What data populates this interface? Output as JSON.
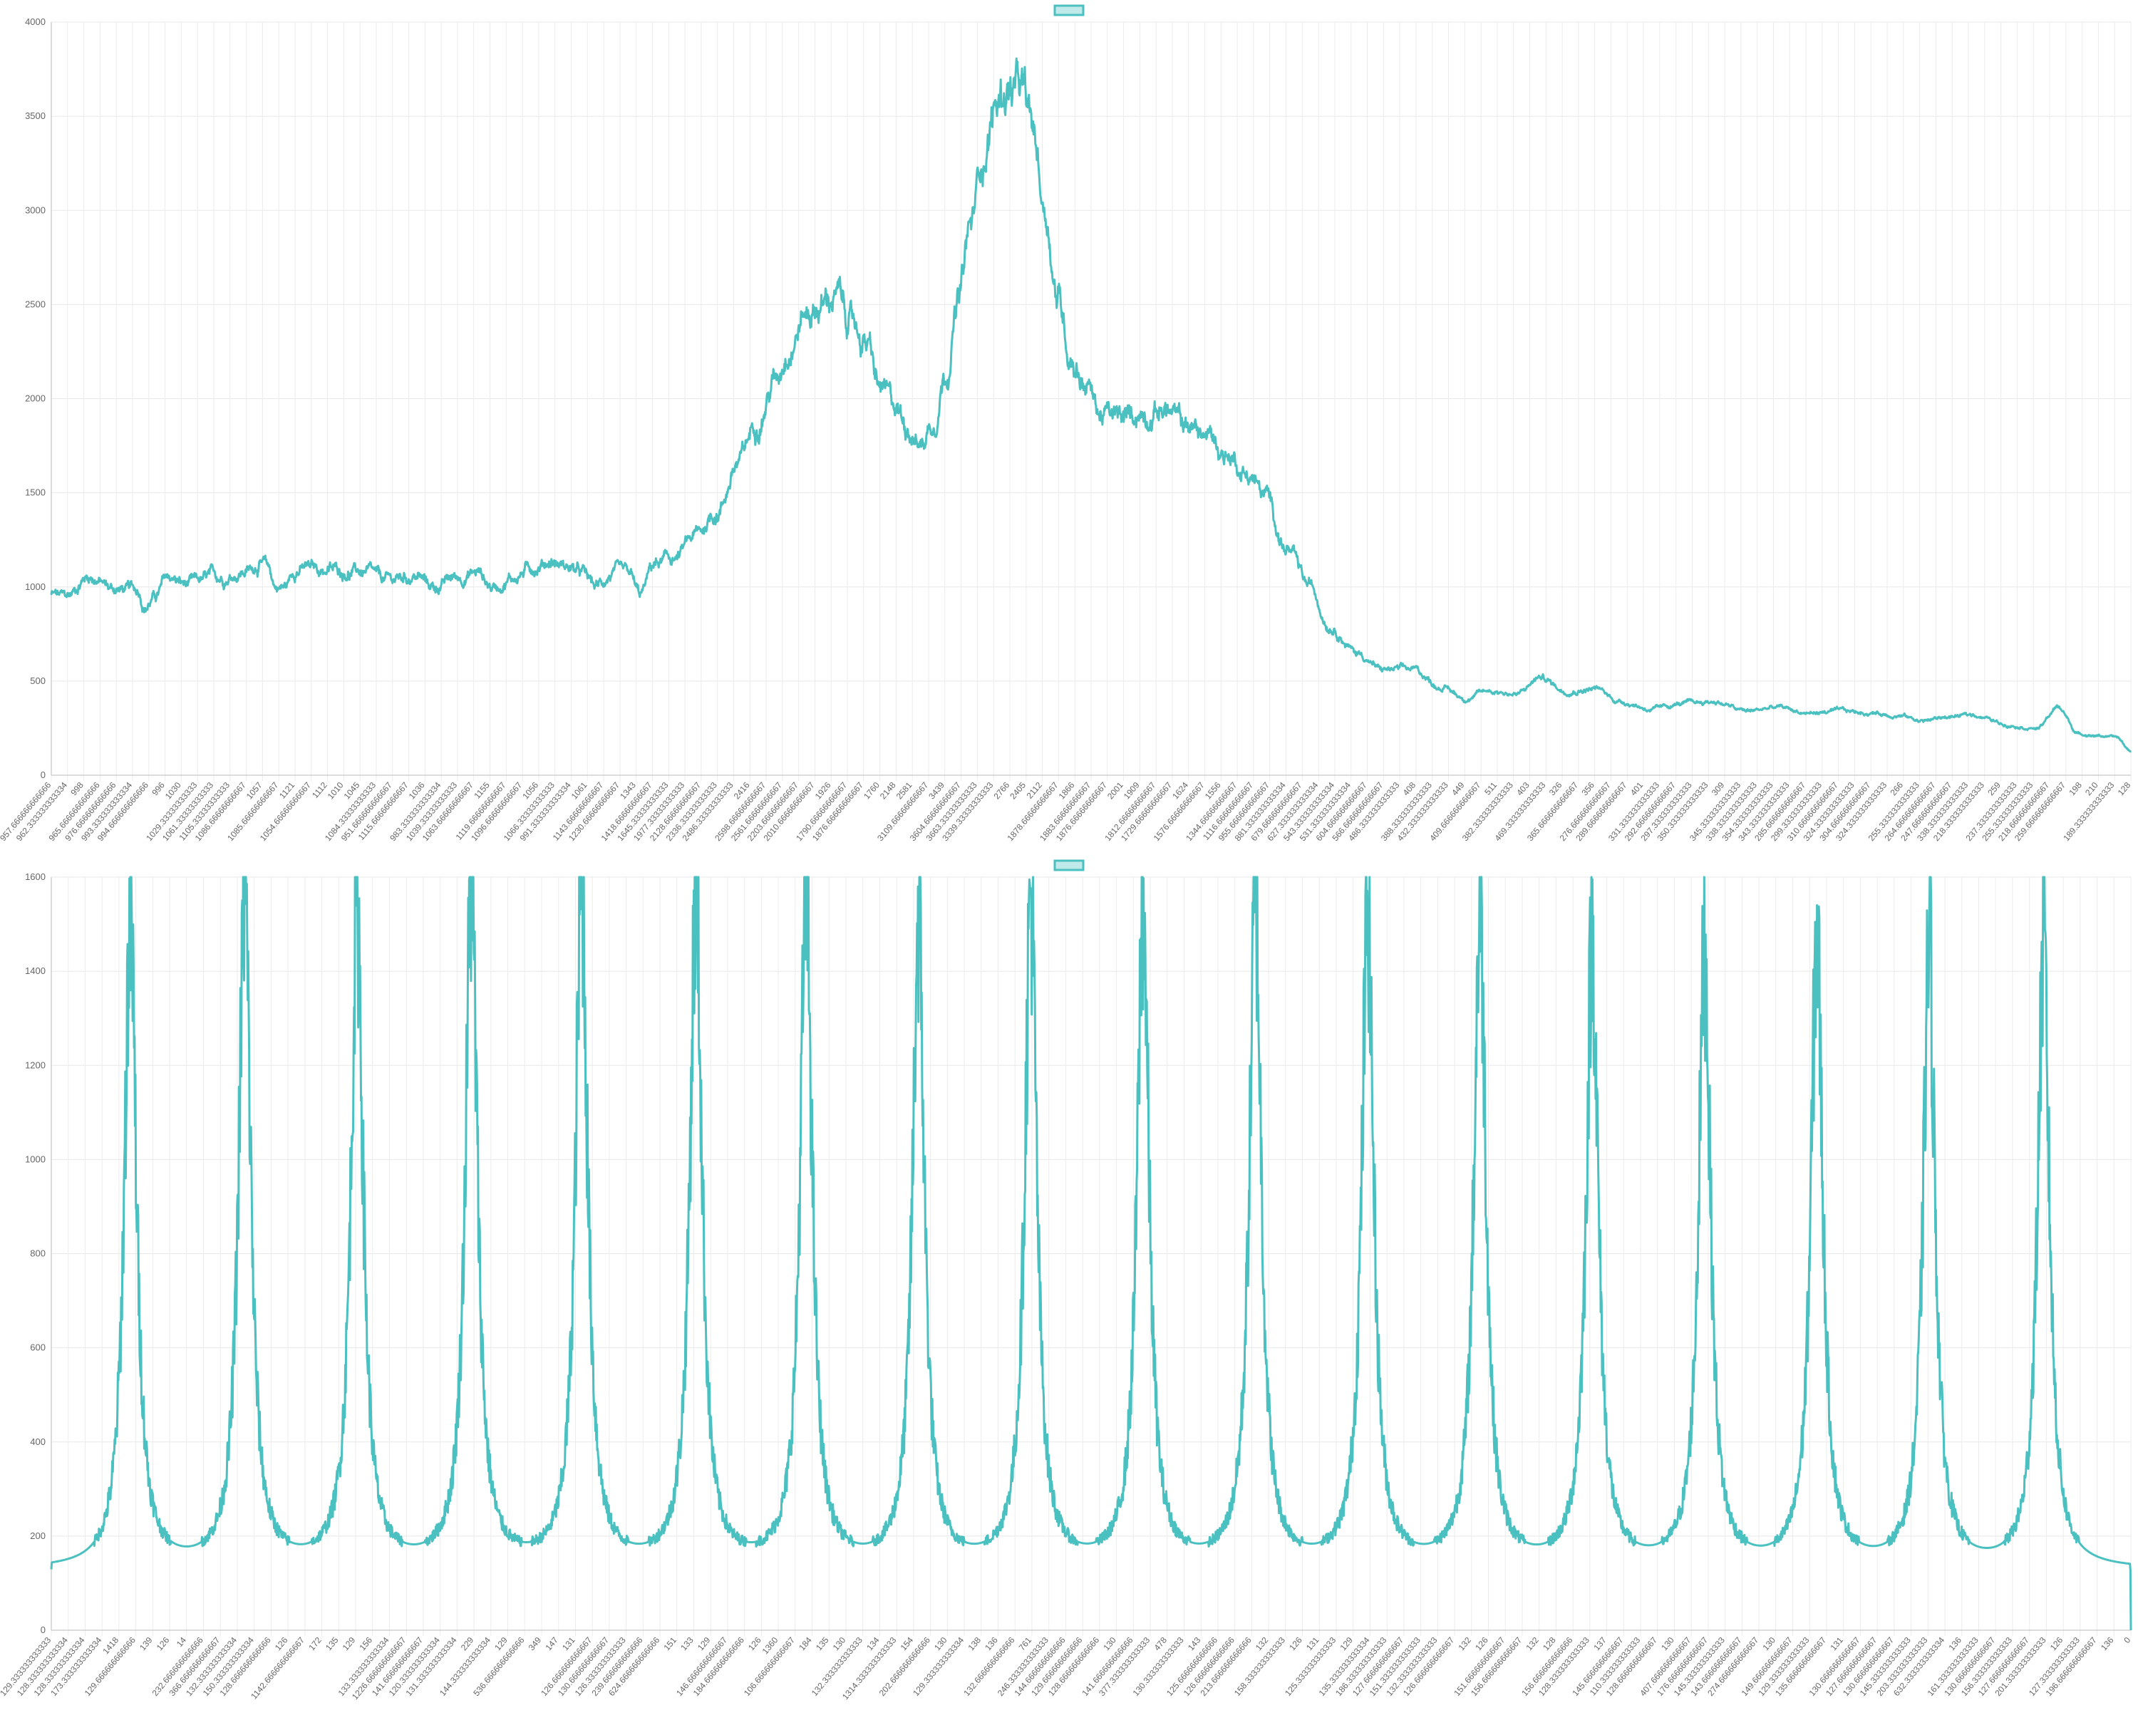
{
  "chart_data": [
    {
      "type": "line",
      "title": "",
      "legend": {
        "position": "top",
        "series_name": ""
      },
      "xlabel": "",
      "ylabel": "",
      "ylim": [
        0,
        4000
      ],
      "y_ticks": [
        0,
        500,
        1000,
        1500,
        2000,
        2500,
        3000,
        3500,
        4000
      ],
      "grid": true,
      "color": "#4bc0c0",
      "x_tick_labels": [
        "957.666666666666",
        "962.333333333334",
        "998",
        "965.666666666666",
        "976.666666666666",
        "993.333333333334",
        "994.666666666666",
        "996",
        "1030",
        "1029.33333333333",
        "1061.33333333333",
        "1105.33333333333",
        "1086.66666666667",
        "1057",
        "1085.66666666667",
        "1121",
        "1054.66666666667",
        "1112",
        "1010",
        "1045",
        "1084.33333333333",
        "951.666666666667",
        "1115.66666666667",
        "1036",
        "983.333333333334",
        "1039.33333333333",
        "1063.66666666667",
        "1155",
        "1119.66666666667",
        "1096.66666666667",
        "1056",
        "1066.33333333333",
        "991.333333333334",
        "1061",
        "1143.66666666667",
        "1230.66666666667",
        "1343",
        "1418.66666666667",
        "1645.33333333333",
        "1977.33333333333",
        "2128.66666666667",
        "2336.33333333333",
        "2486.33333333333",
        "2416",
        "2598.66666666667",
        "2561.66666666667",
        "2203.66666666667",
        "2010.66666666667",
        "1926",
        "1790.66666666667",
        "1876.66666666667",
        "1760",
        "2148",
        "2581",
        "3109.66666666667",
        "3439",
        "3604.66666666667",
        "3663.33333333333",
        "3339.33333333333",
        "2766",
        "2405",
        "2112",
        "1878.66666666667",
        "1866",
        "1883.66666666667",
        "1876.66666666667",
        "2001",
        "1909",
        "1812.66666666667",
        "1729.66666666667",
        "1624",
        "1576.66666666667",
        "1556",
        "1344.66666666667",
        "1116.66666666667",
        "955.666666666667",
        "881.333333333334",
        "679.666666666667",
        "627.333333333334",
        "543.333333333334",
        "531.333333333334",
        "604.666666666667",
        "566.666666666667",
        "486.333333333333",
        "408",
        "388.333333333333",
        "432.333333333333",
        "449",
        "409.666666666667",
        "511",
        "382.333333333333",
        "403",
        "469.333333333333",
        "326",
        "365.666666666667",
        "356",
        "276.666666666667",
        "289.666666666667",
        "401",
        "331.333333333333",
        "292.666666666667",
        "297.333333333333",
        "350.333333333333",
        "309",
        "345.333333333333",
        "338.333333333333",
        "354.333333333333",
        "343.333333333333",
        "285.666666666667",
        "299.333333333333",
        "310.666666666667",
        "324.333333333333",
        "304.666666666667",
        "324.333333333333",
        "266",
        "255.333333333333",
        "264.666666666667",
        "247.666666666667",
        "338.333333333333",
        "218.333333333333",
        "259",
        "237.333333333333",
        "255.333333333333",
        "218.666666666667",
        "259.666666666667",
        "198",
        "210",
        "189.333333333333",
        "128"
      ],
      "series": [
        {
          "name": "",
          "y_first": 957.67,
          "y_last": 128,
          "n_points": 4500,
          "profile_keypoints": [
            [
              0.0,
              960
            ],
            [
              0.007,
              945
            ],
            [
              0.018,
              1060
            ],
            [
              0.03,
              990
            ],
            [
              0.042,
              980
            ],
            [
              0.045,
              900
            ],
            [
              0.05,
              950
            ],
            [
              0.056,
              1050
            ],
            [
              0.065,
              1010
            ],
            [
              0.08,
              1050
            ],
            [
              0.095,
              1090
            ],
            [
              0.1,
              1130
            ],
            [
              0.104,
              1100
            ],
            [
              0.108,
              1000
            ],
            [
              0.112,
              1000
            ],
            [
              0.118,
              1100
            ],
            [
              0.135,
              1090
            ],
            [
              0.15,
              1080
            ],
            [
              0.16,
              1030
            ],
            [
              0.175,
              1060
            ],
            [
              0.184,
              1000
            ],
            [
              0.195,
              1050
            ],
            [
              0.205,
              1080
            ],
            [
              0.212,
              1000
            ],
            [
              0.222,
              1050
            ],
            [
              0.232,
              1110
            ],
            [
              0.24,
              1140
            ],
            [
              0.248,
              1110
            ],
            [
              0.255,
              1070
            ],
            [
              0.262,
              1000
            ],
            [
              0.27,
              1070
            ],
            [
              0.278,
              1050
            ],
            [
              0.283,
              950
            ],
            [
              0.29,
              1120
            ],
            [
              0.3,
              1150
            ],
            [
              0.31,
              1270
            ],
            [
              0.32,
              1400
            ],
            [
              0.33,
              1650
            ],
            [
              0.34,
              1900
            ],
            [
              0.348,
              2100
            ],
            [
              0.355,
              2300
            ],
            [
              0.362,
              2450
            ],
            [
              0.37,
              2500
            ],
            [
              0.377,
              2550
            ],
            [
              0.385,
              2400
            ],
            [
              0.392,
              2300
            ],
            [
              0.398,
              2050
            ],
            [
              0.405,
              1960
            ],
            [
              0.412,
              1870
            ],
            [
              0.418,
              1760
            ],
            [
              0.424,
              1880
            ],
            [
              0.43,
              2150
            ],
            [
              0.436,
              2500
            ],
            [
              0.442,
              2900
            ],
            [
              0.448,
              3300
            ],
            [
              0.454,
              3550
            ],
            [
              0.46,
              3650
            ],
            [
              0.466,
              3620
            ],
            [
              0.472,
              3400
            ],
            [
              0.478,
              3000
            ],
            [
              0.484,
              2550
            ],
            [
              0.49,
              2250
            ],
            [
              0.497,
              2100
            ],
            [
              0.505,
              1920
            ],
            [
              0.515,
              1880
            ],
            [
              0.525,
              1930
            ],
            [
              0.535,
              1950
            ],
            [
              0.545,
              1860
            ],
            [
              0.556,
              1800
            ],
            [
              0.566,
              1700
            ],
            [
              0.576,
              1600
            ],
            [
              0.584,
              1480
            ],
            [
              0.594,
              1200
            ],
            [
              0.605,
              1000
            ],
            [
              0.615,
              800
            ],
            [
              0.628,
              650
            ],
            [
              0.64,
              560
            ],
            [
              0.655,
              560
            ],
            [
              0.668,
              470
            ],
            [
              0.68,
              410
            ],
            [
              0.692,
              450
            ],
            [
              0.705,
              430
            ],
            [
              0.716,
              520
            ],
            [
              0.728,
              450
            ],
            [
              0.742,
              460
            ],
            [
              0.755,
              390
            ],
            [
              0.77,
              350
            ],
            [
              0.785,
              380
            ],
            [
              0.8,
              390
            ],
            [
              0.815,
              340
            ],
            [
              0.83,
              360
            ],
            [
              0.845,
              330
            ],
            [
              0.86,
              340
            ],
            [
              0.875,
              330
            ],
            [
              0.888,
              320
            ],
            [
              0.9,
              290
            ],
            [
              0.912,
              310
            ],
            [
              0.925,
              320
            ],
            [
              0.94,
              270
            ],
            [
              0.955,
              250
            ],
            [
              0.965,
              360
            ],
            [
              0.975,
              220
            ],
            [
              0.985,
              210
            ],
            [
              0.993,
              200
            ],
            [
              1.0,
              128
            ]
          ]
        }
      ]
    },
    {
      "type": "line",
      "title": "",
      "legend": {
        "position": "top",
        "series_name": ""
      },
      "xlabel": "",
      "ylabel": "",
      "ylim": [
        0,
        1600
      ],
      "y_ticks": [
        0,
        200,
        400,
        600,
        800,
        1000,
        1200,
        1400,
        1600
      ],
      "grid": true,
      "color": "#4bc0c0",
      "x_tick_labels": [
        "129.333333333333",
        "128.333333333334",
        "128.333333333334",
        "173.333333333334",
        "1418",
        "129.666666666666",
        "139",
        "126",
        "14",
        "232.666666666666",
        "366.666666666667",
        "132.333333333334",
        "150.333333333334",
        "128.666666666666",
        "126",
        "1142.666666666667",
        "172",
        "135",
        "129",
        "156",
        "133.333333333334",
        "1226.666666666667",
        "141.666666666667",
        "120.333333333334",
        "131.333333333334",
        "229",
        "144.333333333334",
        "129",
        "536.666666666666",
        "349",
        "147",
        "131",
        "126.666666666667",
        "130.666666666667",
        "126.333333333333",
        "239.666666666666",
        "624.666666666666",
        "151",
        "133",
        "129",
        "146.666666666667",
        "184.666666666666",
        "126",
        "1360",
        "106.666666666667",
        "184",
        "135",
        "130",
        "132.333333333333",
        "134",
        "1314.333333333333",
        "154",
        "202.666666666666",
        "130",
        "129.333333333334",
        "138",
        "136",
        "132.666666666666",
        "761",
        "246.333333333333",
        "144.666666666666",
        "129.666666666666",
        "128.666666666666",
        "130",
        "141.666666666666",
        "377.333333333333",
        "478",
        "130.333333333333",
        "143",
        "125.666666666666",
        "126.666666666666",
        "213.666666666666",
        "132",
        "158.333333333333",
        "126",
        "131",
        "125.333333333333",
        "129",
        "135.333333333334",
        "186.333333333333",
        "127.666666666667",
        "151.333333333333",
        "132.333333333333",
        "126.666666666667",
        "132",
        "126",
        "151.666666666667",
        "156.666666666667",
        "132",
        "128",
        "156.666666666666",
        "128.333333333333",
        "137",
        "145.666666666667",
        "110.333333333333",
        "128.666666666667",
        "130",
        "407.666666666667",
        "176.666666666667",
        "145.333333333333",
        "143.666666666667",
        "274.666666666667",
        "130",
        "149.666666666667",
        "129.333333333333",
        "135.666666666667",
        "131",
        "130.666666666667",
        "127.666666666667",
        "130.666666666667",
        "145.333333333333",
        "203.333333333333",
        "632.333333333334",
        "136",
        "161.333333333333",
        "130.666666666667",
        "156.333333333333",
        "127.666666666667",
        "201.333333333333",
        "126",
        "127.333333333333",
        "196.666666666667",
        "136",
        "0"
      ],
      "series": [
        {
          "name": "",
          "y_first": 129.33,
          "y_last": 0,
          "n_points": 4500,
          "baseline": 128,
          "peaks": [
            {
              "x": 0.038,
              "y": 1510
            },
            {
              "x": 0.093,
              "y": 1560
            },
            {
              "x": 0.147,
              "y": 1540
            },
            {
              "x": 0.202,
              "y": 1580
            },
            {
              "x": 0.255,
              "y": 1580
            },
            {
              "x": 0.31,
              "y": 1570
            },
            {
              "x": 0.363,
              "y": 1560
            },
            {
              "x": 0.417,
              "y": 1490
            },
            {
              "x": 0.471,
              "y": 1545
            },
            {
              "x": 0.525,
              "y": 1525
            },
            {
              "x": 0.579,
              "y": 1545
            },
            {
              "x": 0.633,
              "y": 1515
            },
            {
              "x": 0.687,
              "y": 1525
            },
            {
              "x": 0.741,
              "y": 1460
            },
            {
              "x": 0.795,
              "y": 1430
            },
            {
              "x": 0.849,
              "y": 1455
            },
            {
              "x": 0.903,
              "y": 1440
            },
            {
              "x": 0.958,
              "y": 1445
            }
          ]
        }
      ]
    }
  ]
}
